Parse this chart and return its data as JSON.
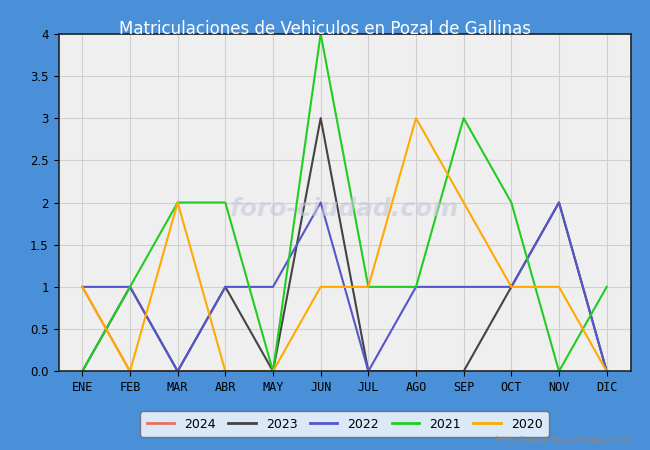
{
  "title": "Matriculaciones de Vehiculos en Pozal de Gallinas",
  "title_color": "white",
  "title_bg_color": "#4a90d9",
  "months": [
    "ENE",
    "FEB",
    "MAR",
    "ABR",
    "MAY",
    "JUN",
    "JUL",
    "AGO",
    "SEP",
    "OCT",
    "NOV",
    "DIC"
  ],
  "series": {
    "2024": {
      "values": [
        1,
        0,
        0,
        0,
        0,
        null,
        null,
        null,
        null,
        null,
        null,
        null
      ],
      "color": "#e87060",
      "linewidth": 1.5
    },
    "2023": {
      "values": [
        0,
        1,
        0,
        1,
        0,
        3,
        0,
        0,
        0,
        1,
        2,
        0
      ],
      "color": "#444444",
      "linewidth": 1.5
    },
    "2022": {
      "values": [
        1,
        1,
        0,
        1,
        1,
        2,
        0,
        1,
        1,
        1,
        2,
        0
      ],
      "color": "#5555cc",
      "linewidth": 1.5
    },
    "2021": {
      "values": [
        0,
        1,
        2,
        2,
        0,
        4,
        1,
        1,
        3,
        2,
        0,
        1
      ],
      "color": "#22cc22",
      "linewidth": 1.5
    },
    "2020": {
      "values": [
        1,
        0,
        2,
        0,
        0,
        1,
        1,
        3,
        2,
        1,
        1,
        0
      ],
      "color": "#ffaa00",
      "linewidth": 1.5
    }
  },
  "ylim": [
    0,
    4.0
  ],
  "yticks": [
    0.0,
    0.5,
    1.0,
    1.5,
    2.0,
    2.5,
    3.0,
    3.5,
    4.0
  ],
  "grid_color": "#d0d0d0",
  "plot_bg_color": "#efefef",
  "watermark_text": "foro-ciudad.com",
  "watermark_color": "#c8c8dd",
  "url_text": "http://www.foro-ciudad.com",
  "legend_years": [
    "2024",
    "2023",
    "2022",
    "2021",
    "2020"
  ],
  "fig_bg_color": "#4a90d9"
}
